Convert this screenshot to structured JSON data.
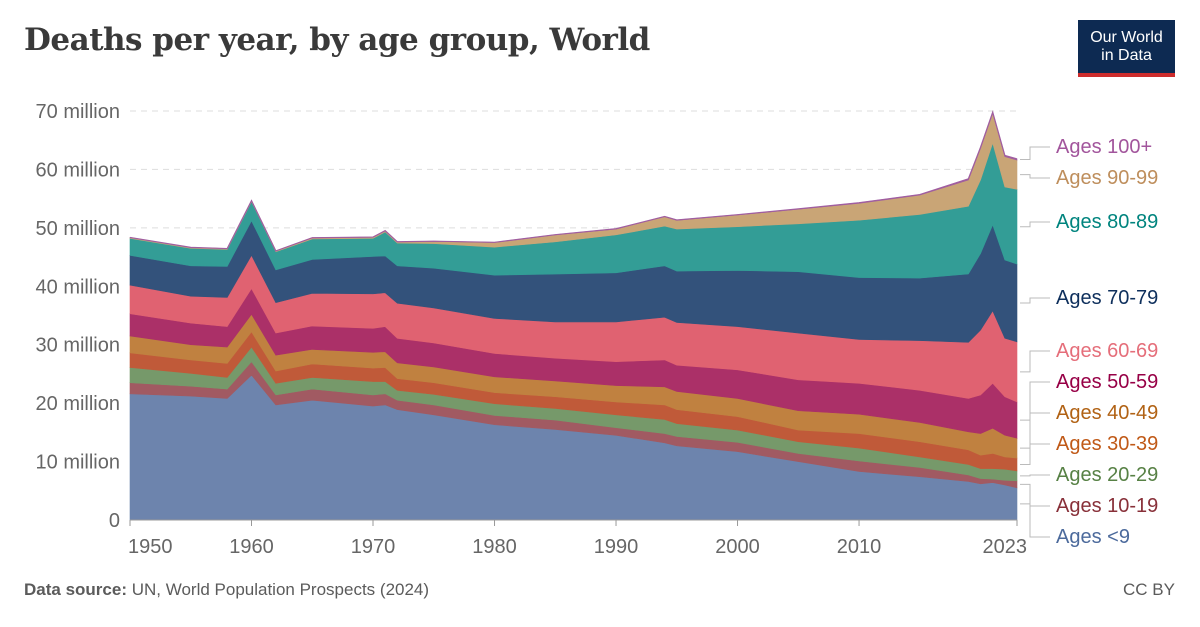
{
  "title": "Deaths per year, by age group, World",
  "logo": {
    "line1": "Our World",
    "line2": "in Data"
  },
  "footer": {
    "source_label": "Data source:",
    "source_text": "UN, World Population Prospects (2024)",
    "license": "CC BY"
  },
  "chart_data": {
    "type": "area",
    "stacked": true,
    "title": "Deaths per year, by age group, World",
    "xlim": [
      1950,
      2023
    ],
    "ylim": [
      0,
      70000000
    ],
    "x_ticks": [
      "1950",
      "1960",
      "1970",
      "1980",
      "1990",
      "2000",
      "2010",
      "2023"
    ],
    "y_ticks": [
      "0",
      "10 million",
      "20 million",
      "30 million",
      "40 million",
      "50 million",
      "60 million",
      "70 million"
    ],
    "y_tick_values": [
      0,
      10,
      20,
      30,
      40,
      50,
      60,
      70
    ],
    "unit": "million",
    "grid": "horizontal dashed",
    "legend": "right, labels at line ends",
    "x": [
      1950,
      1955,
      1958,
      1960,
      1962,
      1965,
      1970,
      1971,
      1972,
      1975,
      1980,
      1985,
      1990,
      1994,
      1995,
      2000,
      2005,
      2010,
      2015,
      2019,
      2020,
      2021,
      2022,
      2023
    ],
    "series": [
      {
        "name": "Ages <9",
        "color": "#6d84ad",
        "label_color": "#4c6a9c",
        "values": [
          21.6,
          21.2,
          20.8,
          24.8,
          19.7,
          20.5,
          19.5,
          19.7,
          18.9,
          18.0,
          16.3,
          15.5,
          14.5,
          13.2,
          12.7,
          11.7,
          10.0,
          8.3,
          7.4,
          6.6,
          6.2,
          6.4,
          6.0,
          5.5
        ]
      },
      {
        "name": "Ages 10-19",
        "color": "#a15a62",
        "label_color": "#883039",
        "values": [
          1.9,
          1.7,
          1.6,
          2.3,
          1.7,
          1.9,
          1.9,
          1.9,
          1.6,
          1.7,
          1.6,
          1.6,
          1.3,
          1.6,
          1.6,
          1.6,
          1.4,
          1.8,
          1.6,
          1.1,
          0.9,
          0.6,
          0.8,
          1.2
        ]
      },
      {
        "name": "Ages 20-29",
        "color": "#76996a",
        "label_color": "#578145",
        "values": [
          2.6,
          2.2,
          2.0,
          2.5,
          2.0,
          2.0,
          2.3,
          2.1,
          1.7,
          1.8,
          2.0,
          2.0,
          2.2,
          2.4,
          2.2,
          2.1,
          2.0,
          2.2,
          1.8,
          1.8,
          1.7,
          1.8,
          1.9,
          1.7
        ]
      },
      {
        "name": "Ages 30-39",
        "color": "#c05a39",
        "label_color": "#c05917",
        "values": [
          2.5,
          2.3,
          2.4,
          2.6,
          2.1,
          2.3,
          2.3,
          2.4,
          2.0,
          2.0,
          1.9,
          2.0,
          2.2,
          2.5,
          2.4,
          2.3,
          2.0,
          2.5,
          2.6,
          2.5,
          2.3,
          2.6,
          2.1,
          2.2
        ]
      },
      {
        "name": "Ages 40-49",
        "color": "#c08140",
        "label_color": "#b16214",
        "values": [
          2.9,
          2.6,
          2.8,
          3.0,
          2.7,
          2.5,
          2.7,
          2.7,
          2.7,
          2.7,
          2.7,
          2.7,
          2.8,
          3.1,
          3.1,
          3.1,
          3.3,
          3.3,
          3.3,
          3.1,
          3.7,
          4.3,
          3.7,
          3.4
        ]
      },
      {
        "name": "Ages 50-59",
        "color": "#ab3068",
        "label_color": "#970046",
        "values": [
          3.8,
          3.7,
          3.5,
          4.4,
          3.8,
          4.0,
          4.1,
          4.3,
          4.2,
          4.1,
          4.0,
          3.9,
          4.1,
          4.6,
          4.5,
          4.9,
          5.3,
          5.3,
          5.5,
          5.7,
          6.6,
          7.7,
          6.6,
          6.2
        ]
      },
      {
        "name": "Ages 60-69",
        "color": "#e06271",
        "label_color": "#e56e7a",
        "values": [
          4.9,
          4.6,
          5.0,
          5.7,
          5.2,
          5.6,
          5.9,
          5.8,
          6.0,
          6.0,
          6.0,
          6.2,
          6.8,
          7.3,
          7.3,
          7.4,
          8.0,
          7.5,
          8.5,
          9.6,
          11.1,
          12.4,
          10.0,
          10.3
        ]
      },
      {
        "name": "Ages 70-79",
        "color": "#33527b",
        "label_color": "#0e2f5c",
        "values": [
          5.1,
          5.2,
          5.3,
          5.9,
          5.6,
          5.8,
          6.4,
          6.3,
          6.4,
          6.8,
          7.4,
          8.2,
          8.4,
          8.8,
          8.8,
          9.6,
          10.5,
          10.6,
          10.7,
          11.7,
          13.1,
          14.7,
          13.4,
          13.3
        ]
      },
      {
        "name": "Ages 80-89",
        "color": "#339d96",
        "label_color": "#00847e",
        "values": [
          2.9,
          3.0,
          2.9,
          3.3,
          3.1,
          3.5,
          3.1,
          4.1,
          3.9,
          4.2,
          4.8,
          5.5,
          6.5,
          6.8,
          7.2,
          7.5,
          8.2,
          9.8,
          10.9,
          11.6,
          12.6,
          14.0,
          12.5,
          12.8
        ]
      },
      {
        "name": "Ages 90-99",
        "color": "#c9a576",
        "label_color": "#be8e5c",
        "values": [
          0.15,
          0.15,
          0.15,
          0.15,
          0.15,
          0.2,
          0.2,
          0.2,
          0.2,
          0.4,
          0.8,
          1.2,
          1.0,
          1.6,
          1.5,
          2.0,
          2.5,
          2.9,
          3.3,
          4.5,
          5.4,
          5.1,
          5.2,
          5.0
        ]
      },
      {
        "name": "Ages 100+",
        "color": "#a05ea0",
        "label_color": "#a2559c",
        "values": [
          0.01,
          0.01,
          0.01,
          0.01,
          0.01,
          0.01,
          0.02,
          0.02,
          0.02,
          0.02,
          0.03,
          0.03,
          0.05,
          0.05,
          0.05,
          0.05,
          0.05,
          0.1,
          0.1,
          0.2,
          0.2,
          0.2,
          0.2,
          0.2
        ]
      }
    ]
  }
}
